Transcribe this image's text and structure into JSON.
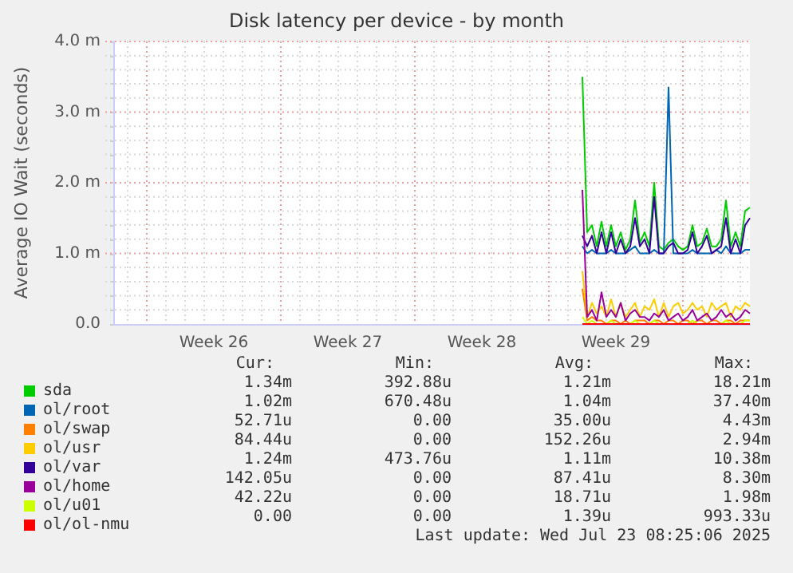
{
  "chart_data": {
    "type": "line",
    "title": "Disk latency per device - by month",
    "ylabel": "Average IO Wait (seconds)",
    "categories": [
      null,
      null,
      null,
      null,
      null,
      null,
      null,
      null,
      null,
      null,
      null,
      null,
      null,
      null,
      null,
      null,
      null,
      null,
      null,
      null,
      null,
      "Week 26",
      null,
      null,
      null,
      null,
      null,
      null,
      null,
      null,
      null,
      null,
      null,
      null,
      null,
      null,
      null,
      null,
      null,
      null,
      null,
      null,
      null,
      null,
      null,
      null,
      null,
      null,
      null,
      "Week 27",
      null,
      null,
      null,
      null,
      null,
      null,
      null,
      null,
      null,
      null,
      null,
      null,
      null,
      null,
      null,
      null,
      null,
      null,
      null,
      null,
      null,
      null,
      null,
      null,
      null,
      null,
      null,
      "Week 28",
      null,
      null,
      null,
      null,
      null,
      null,
      null,
      null,
      null,
      null,
      null,
      null,
      null,
      null,
      null,
      null,
      null,
      null,
      null,
      null,
      null,
      null,
      null,
      null,
      null,
      null,
      null,
      "Week 29",
      null,
      null,
      null,
      null,
      null,
      null,
      null,
      null,
      null,
      null,
      null,
      null,
      null,
      null,
      null,
      null,
      null,
      null,
      null,
      null,
      null,
      null,
      null,
      null,
      null,
      null,
      null,
      null
    ],
    "ylim": [
      0,
      4
    ],
    "yticks": [
      {
        "value": 0,
        "label": "0.0"
      },
      {
        "value": 0.2,
        "label": null
      },
      {
        "value": 0.4,
        "label": null
      },
      {
        "value": 0.6,
        "label": null
      },
      {
        "value": 0.8,
        "label": null
      },
      {
        "value": 1,
        "label": "1.0 m"
      },
      {
        "value": 1.2,
        "label": null
      },
      {
        "value": 1.4,
        "label": null
      },
      {
        "value": 1.6,
        "label": null
      },
      {
        "value": 1.8,
        "label": null
      },
      {
        "value": 2,
        "label": "2.0 m"
      },
      {
        "value": 2.2,
        "label": null
      },
      {
        "value": 2.4,
        "label": null
      },
      {
        "value": 2.6,
        "label": null
      },
      {
        "value": 2.8,
        "label": null
      },
      {
        "value": 3,
        "label": "3.0 m"
      },
      {
        "value": 3.2,
        "label": null
      },
      {
        "value": 3.4,
        "label": null
      },
      {
        "value": 3.6,
        "label": null
      },
      {
        "value": 3.8,
        "label": null
      },
      {
        "value": 4,
        "label": "4.0 m"
      }
    ],
    "grid": true,
    "legend": "bottom",
    "marker": "none",
    "line_style": "solid",
    "series": [
      {
        "name": "sda",
        "color": "#00cc00",
        "values": [
          null,
          null,
          null,
          null,
          null,
          null,
          null,
          null,
          null,
          null,
          null,
          null,
          null,
          null,
          null,
          null,
          null,
          null,
          null,
          null,
          null,
          null,
          null,
          null,
          null,
          null,
          null,
          null,
          null,
          null,
          null,
          null,
          null,
          null,
          null,
          null,
          null,
          null,
          null,
          null,
          null,
          null,
          null,
          null,
          null,
          null,
          null,
          null,
          null,
          null,
          null,
          null,
          null,
          null,
          null,
          null,
          null,
          null,
          null,
          null,
          null,
          null,
          null,
          null,
          null,
          null,
          null,
          null,
          null,
          null,
          null,
          null,
          null,
          null,
          null,
          null,
          null,
          null,
          null,
          null,
          null,
          null,
          null,
          null,
          null,
          null,
          null,
          null,
          null,
          null,
          null,
          null,
          null,
          null,
          null,
          null,
          null,
          null,
          3.5,
          1.3,
          1.4,
          1.1,
          1.45,
          1.1,
          1.4,
          1.1,
          1.3,
          1.05,
          1.2,
          1.75,
          1.15,
          1.3,
          1.1,
          2.0,
          1.1,
          1.05,
          1.15,
          1.2,
          1.1,
          1.05,
          1.1,
          1.4,
          1.1,
          1.15,
          1.35,
          1.1,
          1.1,
          1.2,
          1.75,
          1.1,
          1.3,
          1.1,
          1.6,
          1.65
        ]
      },
      {
        "name": "ol/root",
        "color": "#0066b3",
        "values": [
          null,
          null,
          null,
          null,
          null,
          null,
          null,
          null,
          null,
          null,
          null,
          null,
          null,
          null,
          null,
          null,
          null,
          null,
          null,
          null,
          null,
          null,
          null,
          null,
          null,
          null,
          null,
          null,
          null,
          null,
          null,
          null,
          null,
          null,
          null,
          null,
          null,
          null,
          null,
          null,
          null,
          null,
          null,
          null,
          null,
          null,
          null,
          null,
          null,
          null,
          null,
          null,
          null,
          null,
          null,
          null,
          null,
          null,
          null,
          null,
          null,
          null,
          null,
          null,
          null,
          null,
          null,
          null,
          null,
          null,
          null,
          null,
          null,
          null,
          null,
          null,
          null,
          null,
          null,
          null,
          null,
          null,
          null,
          null,
          null,
          null,
          null,
          null,
          null,
          null,
          null,
          null,
          null,
          null,
          null,
          null,
          null,
          null,
          1.1,
          1.0,
          1.05,
          1.0,
          1.0,
          1.0,
          1.05,
          1.0,
          1.0,
          1.0,
          1.05,
          1.1,
          1.0,
          1.0,
          1.0,
          1.05,
          1.0,
          1.0,
          3.35,
          1.0,
          1.0,
          1.0,
          1.0,
          1.05,
          1.0,
          1.0,
          1.0,
          1.0,
          1.05,
          1.0,
          1.1,
          1.0,
          1.0,
          1.0,
          1.05,
          1.05
        ]
      },
      {
        "name": "ol/swap",
        "color": "#ff8000",
        "values": [
          null,
          null,
          null,
          null,
          null,
          null,
          null,
          null,
          null,
          null,
          null,
          null,
          null,
          null,
          null,
          null,
          null,
          null,
          null,
          null,
          null,
          null,
          null,
          null,
          null,
          null,
          null,
          null,
          null,
          null,
          null,
          null,
          null,
          null,
          null,
          null,
          null,
          null,
          null,
          null,
          null,
          null,
          null,
          null,
          null,
          null,
          null,
          null,
          null,
          null,
          null,
          null,
          null,
          null,
          null,
          null,
          null,
          null,
          null,
          null,
          null,
          null,
          null,
          null,
          null,
          null,
          null,
          null,
          null,
          null,
          null,
          null,
          null,
          null,
          null,
          null,
          null,
          null,
          null,
          null,
          null,
          null,
          null,
          null,
          null,
          null,
          null,
          null,
          null,
          null,
          null,
          null,
          null,
          null,
          null,
          null,
          null,
          null,
          0.5,
          0.05,
          0.1,
          0.05,
          0.05,
          0.0,
          0.05,
          0.05,
          0.0,
          0.05,
          0.0,
          0.05,
          0.05,
          0.05,
          0.0,
          0.05,
          0.05,
          0.0,
          0.05,
          0.05,
          0.0,
          0.05,
          0.05,
          0.0,
          0.05,
          0.05,
          0.0,
          0.05,
          0.05,
          0.0,
          0.05,
          0.05,
          0.0,
          0.05,
          0.05,
          0.05
        ]
      },
      {
        "name": "ol/usr",
        "color": "#ffcc00",
        "values": [
          null,
          null,
          null,
          null,
          null,
          null,
          null,
          null,
          null,
          null,
          null,
          null,
          null,
          null,
          null,
          null,
          null,
          null,
          null,
          null,
          null,
          null,
          null,
          null,
          null,
          null,
          null,
          null,
          null,
          null,
          null,
          null,
          null,
          null,
          null,
          null,
          null,
          null,
          null,
          null,
          null,
          null,
          null,
          null,
          null,
          null,
          null,
          null,
          null,
          null,
          null,
          null,
          null,
          null,
          null,
          null,
          null,
          null,
          null,
          null,
          null,
          null,
          null,
          null,
          null,
          null,
          null,
          null,
          null,
          null,
          null,
          null,
          null,
          null,
          null,
          null,
          null,
          null,
          null,
          null,
          null,
          null,
          null,
          null,
          null,
          null,
          null,
          null,
          null,
          null,
          null,
          null,
          null,
          null,
          null,
          null,
          null,
          null,
          0.75,
          0.1,
          0.3,
          0.15,
          0.25,
          0.1,
          0.35,
          0.1,
          0.3,
          0.1,
          0.2,
          0.3,
          0.1,
          0.25,
          0.2,
          0.35,
          0.1,
          0.3,
          0.1,
          0.25,
          0.3,
          0.15,
          0.2,
          0.3,
          0.2,
          0.25,
          0.1,
          0.3,
          0.2,
          0.25,
          0.3,
          0.1,
          0.25,
          0.2,
          0.3,
          0.25
        ]
      },
      {
        "name": "ol/var",
        "color": "#330099",
        "values": [
          null,
          null,
          null,
          null,
          null,
          null,
          null,
          null,
          null,
          null,
          null,
          null,
          null,
          null,
          null,
          null,
          null,
          null,
          null,
          null,
          null,
          null,
          null,
          null,
          null,
          null,
          null,
          null,
          null,
          null,
          null,
          null,
          null,
          null,
          null,
          null,
          null,
          null,
          null,
          null,
          null,
          null,
          null,
          null,
          null,
          null,
          null,
          null,
          null,
          null,
          null,
          null,
          null,
          null,
          null,
          null,
          null,
          null,
          null,
          null,
          null,
          null,
          null,
          null,
          null,
          null,
          null,
          null,
          null,
          null,
          null,
          null,
          null,
          null,
          null,
          null,
          null,
          null,
          null,
          null,
          null,
          null,
          null,
          null,
          null,
          null,
          null,
          null,
          null,
          null,
          null,
          null,
          null,
          null,
          null,
          null,
          null,
          null,
          1.25,
          1.1,
          1.25,
          1.0,
          1.3,
          1.0,
          1.3,
          1.0,
          1.2,
          1.0,
          1.1,
          1.5,
          1.1,
          1.2,
          1.0,
          1.8,
          1.0,
          1.0,
          1.1,
          1.15,
          1.0,
          1.0,
          1.05,
          1.3,
          1.0,
          1.1,
          1.25,
          1.0,
          1.05,
          1.1,
          1.5,
          1.0,
          1.2,
          1.0,
          1.4,
          1.5
        ]
      },
      {
        "name": "ol/home",
        "color": "#990099",
        "values": [
          null,
          null,
          null,
          null,
          null,
          null,
          null,
          null,
          null,
          null,
          null,
          null,
          null,
          null,
          null,
          null,
          null,
          null,
          null,
          null,
          null,
          null,
          null,
          null,
          null,
          null,
          null,
          null,
          null,
          null,
          null,
          null,
          null,
          null,
          null,
          null,
          null,
          null,
          null,
          null,
          null,
          null,
          null,
          null,
          null,
          null,
          null,
          null,
          null,
          null,
          null,
          null,
          null,
          null,
          null,
          null,
          null,
          null,
          null,
          null,
          null,
          null,
          null,
          null,
          null,
          null,
          null,
          null,
          null,
          null,
          null,
          null,
          null,
          null,
          null,
          null,
          null,
          null,
          null,
          null,
          null,
          null,
          null,
          null,
          null,
          null,
          null,
          null,
          null,
          null,
          null,
          null,
          null,
          null,
          null,
          null,
          null,
          null,
          1.9,
          0.1,
          0.2,
          0.05,
          0.45,
          0.1,
          0.2,
          0.1,
          0.3,
          0.05,
          0.15,
          0.2,
          0.1,
          0.1,
          0.05,
          0.15,
          0.1,
          0.2,
          0.05,
          0.1,
          0.15,
          0.05,
          0.1,
          0.2,
          0.05,
          0.1,
          0.15,
          0.05,
          0.1,
          0.2,
          0.1,
          0.15,
          0.05,
          0.1,
          0.2,
          0.15
        ]
      },
      {
        "name": "ol/u01",
        "color": "#ccff00",
        "values": [
          null,
          null,
          null,
          null,
          null,
          null,
          null,
          null,
          null,
          null,
          null,
          null,
          null,
          null,
          null,
          null,
          null,
          null,
          null,
          null,
          null,
          null,
          null,
          null,
          null,
          null,
          null,
          null,
          null,
          null,
          null,
          null,
          null,
          null,
          null,
          null,
          null,
          null,
          null,
          null,
          null,
          null,
          null,
          null,
          null,
          null,
          null,
          null,
          null,
          null,
          null,
          null,
          null,
          null,
          null,
          null,
          null,
          null,
          null,
          null,
          null,
          null,
          null,
          null,
          null,
          null,
          null,
          null,
          null,
          null,
          null,
          null,
          null,
          null,
          null,
          null,
          null,
          null,
          null,
          null,
          null,
          null,
          null,
          null,
          null,
          null,
          null,
          null,
          null,
          null,
          null,
          null,
          null,
          null,
          null,
          null,
          null,
          null,
          0.1,
          0.0,
          0.05,
          0.0,
          0.0,
          0.0,
          0.05,
          0.0,
          0.0,
          0.0,
          0.0,
          0.05,
          0.0,
          0.0,
          0.0,
          0.05,
          0.0,
          0.0,
          0.0,
          0.0,
          0.0,
          0.0,
          0.0,
          0.05,
          0.0,
          0.0,
          0.0,
          0.0,
          0.0,
          0.0,
          0.05,
          0.0,
          0.0,
          0.0,
          0.05,
          0.05
        ]
      },
      {
        "name": "ol/ol-nmu",
        "color": "#ff0000",
        "values": [
          null,
          null,
          null,
          null,
          null,
          null,
          null,
          null,
          null,
          null,
          null,
          null,
          null,
          null,
          null,
          null,
          null,
          null,
          null,
          null,
          null,
          null,
          null,
          null,
          null,
          null,
          null,
          null,
          null,
          null,
          null,
          null,
          null,
          null,
          null,
          null,
          null,
          null,
          null,
          null,
          null,
          null,
          null,
          null,
          null,
          null,
          null,
          null,
          null,
          null,
          null,
          null,
          null,
          null,
          null,
          null,
          null,
          null,
          null,
          null,
          null,
          null,
          null,
          null,
          null,
          null,
          null,
          null,
          null,
          null,
          null,
          null,
          null,
          null,
          null,
          null,
          null,
          null,
          null,
          null,
          null,
          null,
          null,
          null,
          null,
          null,
          null,
          null,
          null,
          null,
          null,
          null,
          null,
          null,
          null,
          null,
          null,
          null,
          0,
          0,
          0,
          0,
          0,
          0,
          0,
          0,
          0,
          0,
          0,
          0,
          0,
          0,
          0,
          0,
          0,
          0,
          0,
          0,
          0,
          0,
          0,
          0,
          0,
          0,
          0,
          0,
          0,
          0,
          0,
          0,
          0,
          0,
          0,
          0
        ]
      }
    ],
    "annotations": [
      "Cur:",
      "Min:",
      "Avg:",
      "Max:",
      "1.34m",
      "392.88u",
      "1.21m",
      "18.21m",
      "1.02m",
      "670.48u",
      "1.04m",
      "37.40m",
      "52.71u",
      "0.00",
      "35.00u",
      "4.43m",
      "84.44u",
      "0.00",
      "152.26u",
      "2.94m",
      "1.24m",
      "473.76u",
      "1.11m",
      "10.38m",
      "142.05u",
      "0.00",
      "87.41u",
      "8.30m",
      "42.22u",
      "0.00",
      "18.71u",
      "1.98m",
      "0.00",
      "0.00",
      "1.39u",
      "993.33u",
      "Last update: Wed Jul 23 08:25:06 2025"
    ]
  }
}
